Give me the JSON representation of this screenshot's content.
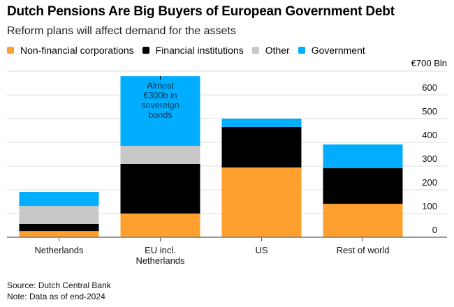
{
  "title": "Dutch Pensions Are Big Buyers of European Government Debt",
  "subtitle": "Reform plans will affect demand for the assets",
  "unit_label": "€700 Bln",
  "source": "Source: Dutch Central Bank",
  "note": "Note: Data as of end-2024",
  "chart_data": {
    "type": "bar",
    "stacked": true,
    "title": "Dutch Pensions Are Big Buyers of European Government Debt",
    "subtitle": "Reform plans will affect demand for the assets",
    "xlabel": "",
    "ylabel": "€ Bln",
    "ylim": [
      0,
      700
    ],
    "y_axis_position": "right",
    "yticks": [
      0,
      100,
      200,
      300,
      400,
      500,
      600
    ],
    "grid": true,
    "legend_position": "top-left",
    "categories": [
      "Netherlands",
      "EU incl. Netherlands",
      "US",
      "Rest of world"
    ],
    "category_labels": [
      [
        "Netherlands"
      ],
      [
        "EU incl.",
        "Netherlands"
      ],
      [
        "US"
      ],
      [
        "Rest of world"
      ]
    ],
    "series": [
      {
        "name": "Non-financial corporations",
        "color": "#fda02f",
        "values": [
          26,
          100,
          294,
          141
        ]
      },
      {
        "name": "Financial institutions",
        "color": "#000000",
        "values": [
          30,
          209,
          171,
          150
        ]
      },
      {
        "name": "Other",
        "color": "#c8c8c8",
        "values": [
          76,
          76,
          0,
          0
        ]
      },
      {
        "name": "Government",
        "color": "#00adfe",
        "values": [
          59,
          294,
          35,
          100
        ]
      }
    ],
    "annotations": [
      {
        "category": "EU incl. Netherlands",
        "lines": [
          "Almost",
          "€300b in",
          "sovereign",
          "bonds"
        ]
      }
    ]
  }
}
